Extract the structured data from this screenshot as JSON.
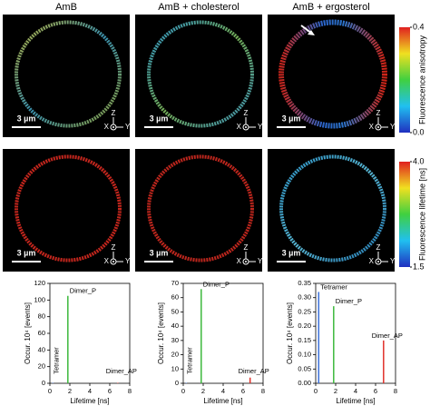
{
  "columns": [
    "AmB",
    "AmB + cholesterol",
    "AmB + ergosterol"
  ],
  "scale_bar": "3 µm",
  "axes_labels": {
    "z": "Z",
    "x": "X",
    "y": "Y"
  },
  "colorbars": [
    {
      "label": "Fluorescence anisotropy",
      "lim": [
        0,
        0.4
      ],
      "ticks": [
        {
          "value": 0,
          "label": "0.0"
        },
        {
          "value": 0.4,
          "label": "0.4"
        }
      ]
    },
    {
      "label": "Fluorescence lifetime [ns]",
      "lim": [
        1.5,
        4.0
      ],
      "ticks": [
        1.5,
        {
          "value": 4,
          "label": "4.0"
        }
      ]
    }
  ],
  "chart_data": [
    {
      "type": "stem",
      "xlabel": "Lifetime [ns]",
      "ylabel": "Occur. 10⁴ [events]",
      "x": [
        0.3,
        1.8,
        6.8
      ],
      "values": [
        0.5,
        105,
        0.5
      ],
      "labels": [
        "Tetramer",
        "Dimer_P",
        "Dimer_AP"
      ],
      "colors": [
        "#3a6fd8",
        "#3cb83c",
        "#e0302a"
      ],
      "xlim": [
        0,
        8
      ],
      "xticks": [
        0,
        2,
        4,
        6,
        8
      ],
      "ylim": [
        0,
        120
      ],
      "yticks": [
        0,
        20,
        40,
        60,
        80,
        100,
        120
      ]
    },
    {
      "type": "stem",
      "xlabel": "Lifetime [ns]",
      "ylabel": "Occur. 10⁴ [events]",
      "x": [
        0.3,
        1.8,
        6.7
      ],
      "values": [
        0.3,
        66,
        4
      ],
      "labels": [
        "Tetramer",
        "Dimer_P",
        "Dimer_AP"
      ],
      "colors": [
        "#3a6fd8",
        "#3cb83c",
        "#e0302a"
      ],
      "xlim": [
        0,
        8
      ],
      "xticks": [
        0,
        2,
        4,
        6,
        8
      ],
      "ylim": [
        0,
        70
      ],
      "yticks": [
        0,
        10,
        20,
        30,
        40,
        50,
        60,
        70
      ]
    },
    {
      "type": "stem",
      "xlabel": "Lifetime [ns]",
      "ylabel": "Occur. 10⁴ [events]",
      "x": [
        0.3,
        1.8,
        6.8
      ],
      "values": [
        0.32,
        0.27,
        0.15
      ],
      "labels": [
        "Tetramer",
        "Dimer_P",
        "Dimer_AP"
      ],
      "colors": [
        "#3a6fd8",
        "#3cb83c",
        "#e0302a"
      ],
      "xlim": [
        0,
        8
      ],
      "xticks": [
        0,
        2,
        4,
        6,
        8
      ],
      "ylim": [
        0,
        0.35
      ],
      "yticks": [
        {
          "value": 0,
          "label": "0.00"
        },
        {
          "value": 0.05,
          "label": "0.05"
        },
        {
          "value": 0.1,
          "label": "0.10"
        },
        {
          "value": 0.15,
          "label": "0.15"
        },
        {
          "value": 0.2,
          "label": "0.20"
        },
        {
          "value": 0.25,
          "label": "0.25"
        },
        {
          "value": 0.3,
          "label": "0.30"
        },
        {
          "value": 0.35,
          "label": "0.35"
        }
      ]
    }
  ]
}
